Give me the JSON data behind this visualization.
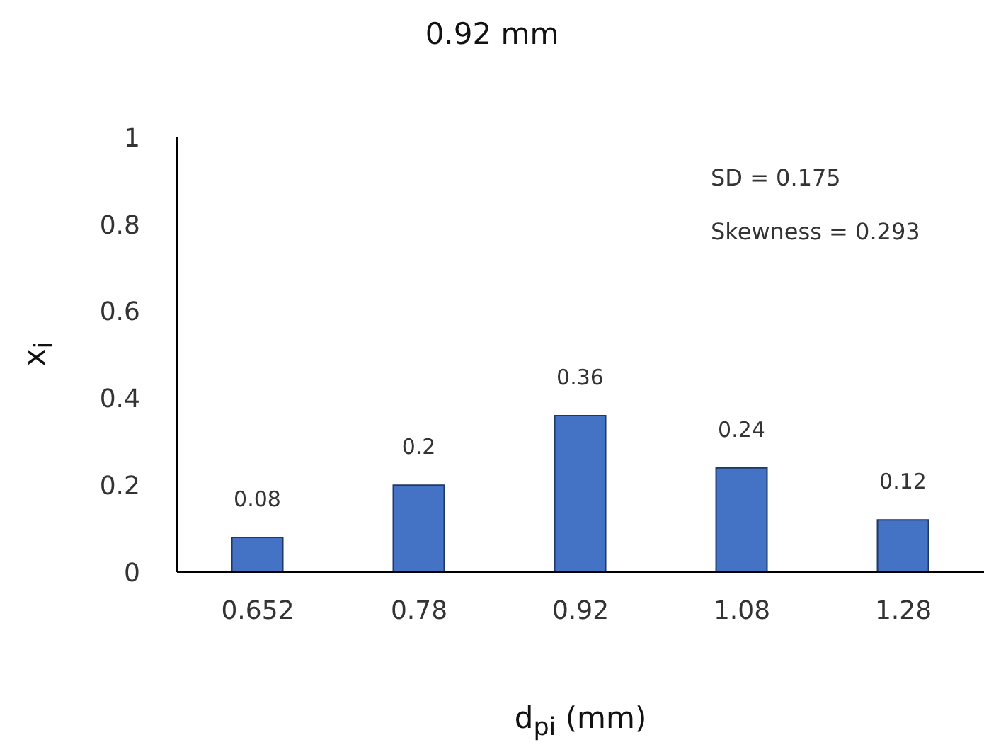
{
  "chart_data": {
    "type": "bar",
    "title": "0.92 mm",
    "xlabel": "d$_{pi}$ (mm)",
    "ylabel": "x$_{i}$",
    "categories": [
      "0.652",
      "0.78",
      "0.92",
      "1.08",
      "1.28"
    ],
    "values": [
      0.08,
      0.2,
      0.36,
      0.24,
      0.12
    ],
    "color": "#4472c4",
    "ylim": [
      0,
      1
    ],
    "yticks": [
      0,
      0.2,
      0.4,
      0.6,
      0.8,
      1
    ],
    "grid": false,
    "data_labels": true,
    "annotations": [
      "SD = 0.175",
      "Skewness = 0.293"
    ]
  }
}
